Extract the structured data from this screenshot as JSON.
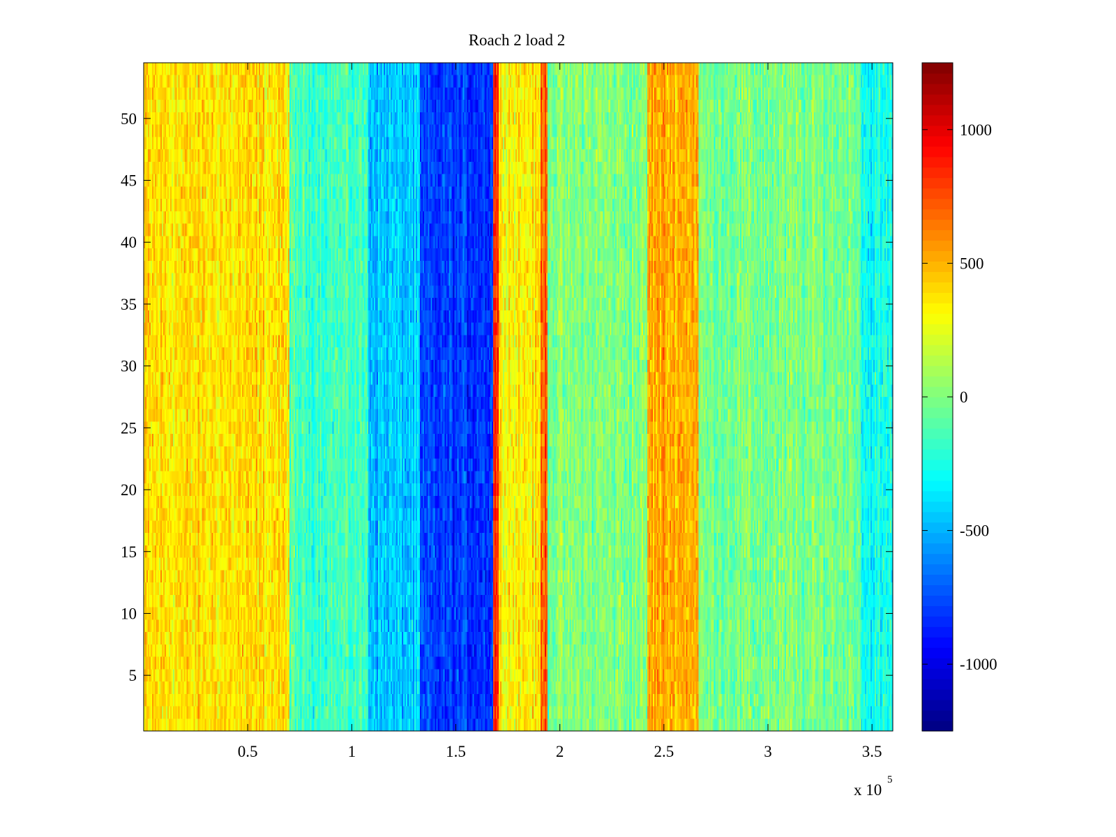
{
  "chart_data": {
    "type": "heatmap",
    "title": "Roach 2 load 2",
    "xlabel": "",
    "ylabel": "",
    "x_tick_labels": [
      "0.5",
      "1",
      "1.5",
      "2",
      "2.5",
      "3",
      "3.5"
    ],
    "x_ticks": [
      50000,
      100000,
      150000,
      200000,
      250000,
      300000,
      350000
    ],
    "x_exponent_base": "x 10",
    "x_exponent_power": "5",
    "xlim": [
      0,
      360000
    ],
    "y_tick_labels": [
      "5",
      "10",
      "15",
      "20",
      "25",
      "30",
      "35",
      "40",
      "45",
      "50"
    ],
    "y_ticks": [
      5,
      10,
      15,
      20,
      25,
      30,
      35,
      40,
      45,
      50
    ],
    "ylim": [
      0.5,
      54.5
    ],
    "rows": 54,
    "colormap": "jet",
    "clim": [
      -1250,
      1250
    ],
    "colorbar_tick_labels": [
      "1000",
      "500",
      "0",
      "-500",
      "-1000"
    ],
    "colorbar_ticks": [
      1000,
      500,
      0,
      -500,
      -1000
    ],
    "column_band_profile": [
      {
        "x_start": 0,
        "x_end": 70000,
        "mean_value": 380
      },
      {
        "x_start": 70000,
        "x_end": 108000,
        "mean_value": -150
      },
      {
        "x_start": 108000,
        "x_end": 133000,
        "mean_value": -450
      },
      {
        "x_start": 133000,
        "x_end": 168000,
        "mean_value": -800
      },
      {
        "x_start": 168000,
        "x_end": 171000,
        "mean_value": 850
      },
      {
        "x_start": 171000,
        "x_end": 191000,
        "mean_value": 350
      },
      {
        "x_start": 191000,
        "x_end": 194000,
        "mean_value": 700
      },
      {
        "x_start": 194000,
        "x_end": 242000,
        "mean_value": 0
      },
      {
        "x_start": 242000,
        "x_end": 267000,
        "mean_value": 520
      },
      {
        "x_start": 267000,
        "x_end": 345000,
        "mean_value": -20
      },
      {
        "x_start": 345000,
        "x_end": 360000,
        "mean_value": -280
      }
    ],
    "grid": false,
    "legend": "none"
  }
}
